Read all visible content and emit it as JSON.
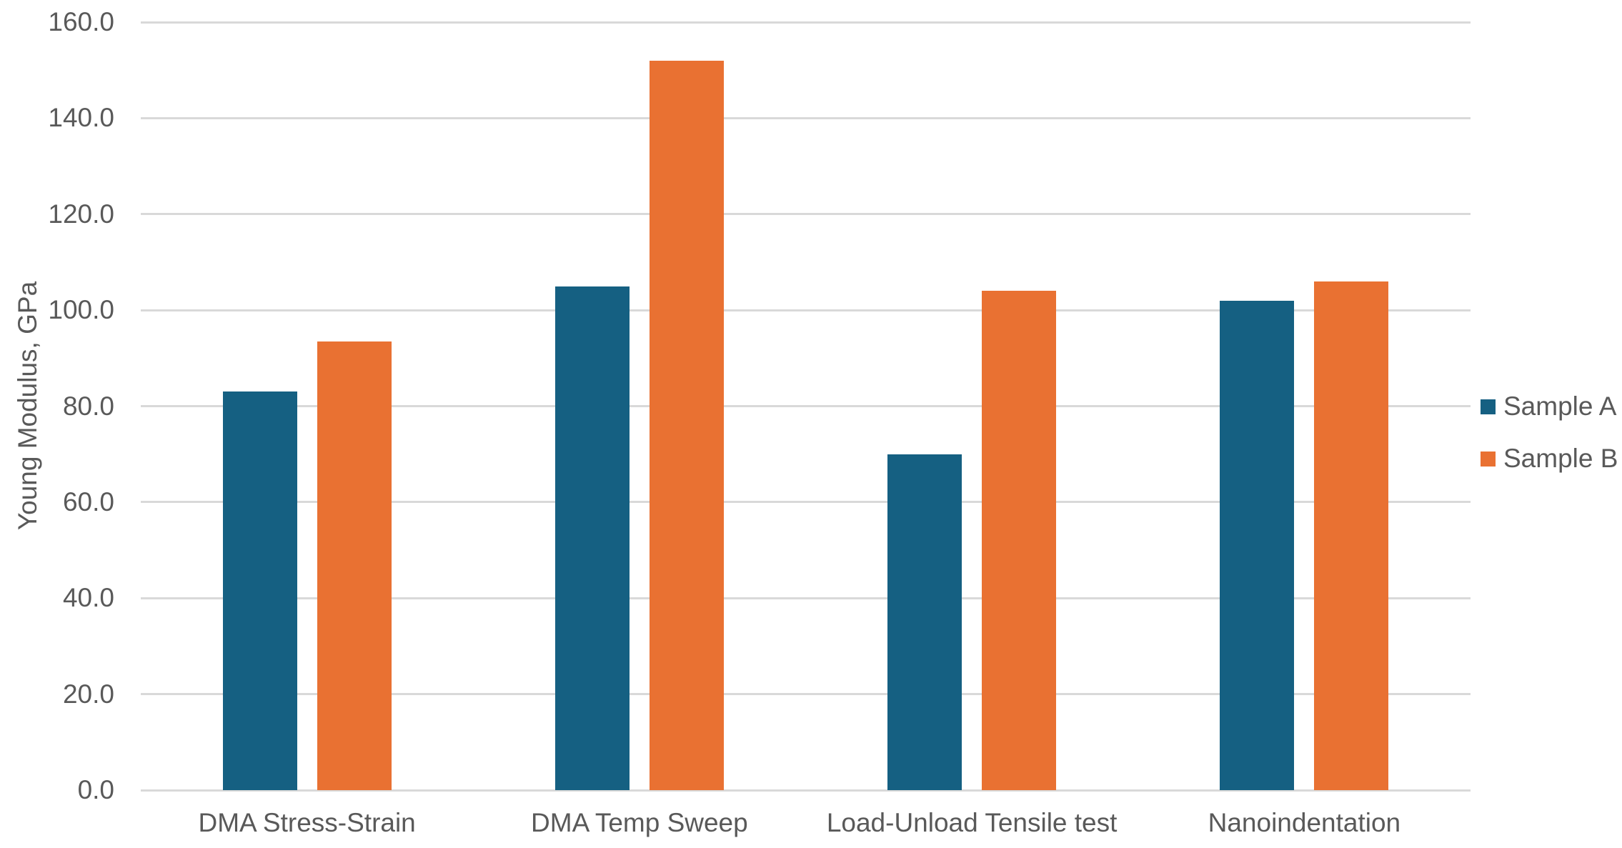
{
  "chart_data": {
    "type": "bar",
    "title": "",
    "categories": [
      "DMA Stress-Strain",
      "DMA Temp Sweep",
      "Load-Unload Tensile test",
      "Nanoindentation"
    ],
    "series": [
      {
        "name": "Sample A",
        "color": "#156082",
        "values": [
          83,
          105,
          70,
          102
        ]
      },
      {
        "name": "Sample B",
        "color": "#E97132",
        "values": [
          93.5,
          152,
          104,
          106
        ]
      }
    ],
    "xlabel": "",
    "ylabel": "Young Modulus, GPa",
    "ylim": [
      0,
      160
    ],
    "ytick_step": 20,
    "ytick_decimals": 1,
    "grid": true,
    "legend_position": "right",
    "colors": {
      "gridline": "#D9D9D9",
      "axis_line": "#D9D9D9",
      "text": "#595959",
      "background": "#FFFFFF"
    }
  }
}
